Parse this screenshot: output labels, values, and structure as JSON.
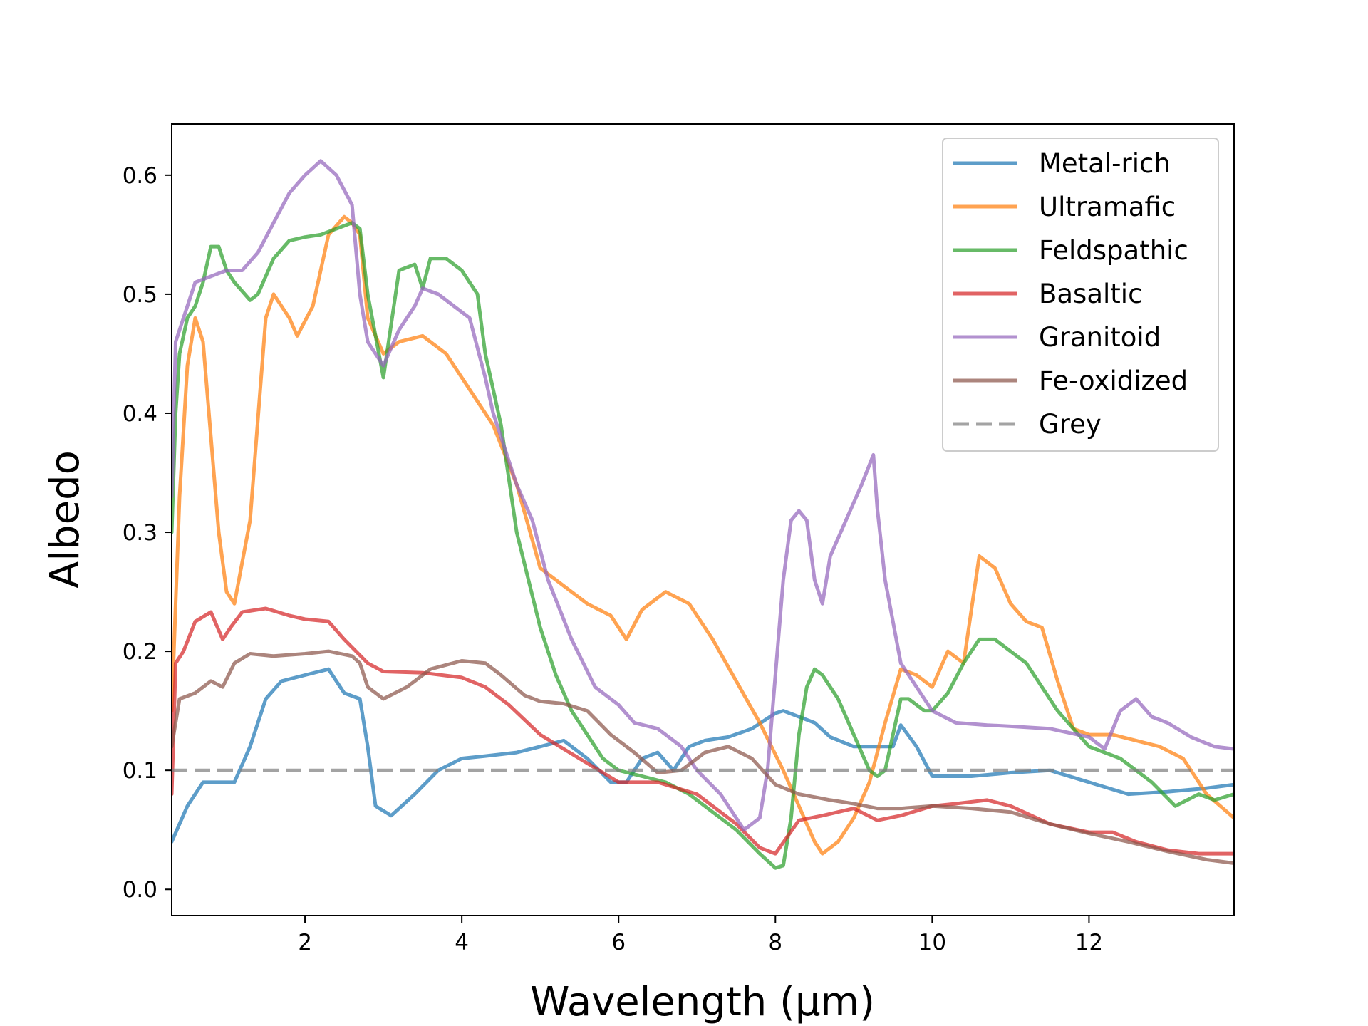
{
  "chart_data": {
    "type": "line",
    "title": "",
    "xlabel": "Wavelength (μm)",
    "ylabel": "Albedo",
    "xlim": [
      0.3,
      13.85
    ],
    "ylim": [
      -0.022,
      0.643
    ],
    "xticks": [
      2,
      4,
      6,
      8,
      10,
      12
    ],
    "yticks": [
      0.0,
      0.1,
      0.2,
      0.3,
      0.4,
      0.5,
      0.6
    ],
    "ytick_labels": [
      "0.0",
      "0.1",
      "0.2",
      "0.3",
      "0.4",
      "0.5",
      "0.6"
    ],
    "grid": false,
    "legend_position": "top-right",
    "series": [
      {
        "name": "Metal-rich",
        "color": "#1f77b4",
        "dashed": false,
        "x": [
          0.3,
          0.5,
          0.7,
          0.9,
          1.1,
          1.3,
          1.5,
          1.7,
          2.0,
          2.3,
          2.5,
          2.7,
          2.8,
          2.9,
          3.1,
          3.4,
          3.7,
          4.0,
          4.3,
          4.7,
          5.0,
          5.3,
          5.6,
          5.9,
          6.1,
          6.3,
          6.5,
          6.7,
          6.9,
          7.1,
          7.4,
          7.7,
          8.0,
          8.1,
          8.3,
          8.5,
          8.7,
          9.0,
          9.3,
          9.5,
          9.6,
          9.8,
          10.0,
          10.5,
          11.0,
          11.5,
          12.0,
          12.5,
          13.0,
          13.5,
          13.85
        ],
        "y": [
          0.04,
          0.07,
          0.09,
          0.09,
          0.09,
          0.12,
          0.16,
          0.175,
          0.18,
          0.185,
          0.165,
          0.16,
          0.12,
          0.07,
          0.062,
          0.08,
          0.1,
          0.11,
          0.112,
          0.115,
          0.12,
          0.125,
          0.11,
          0.09,
          0.09,
          0.11,
          0.115,
          0.1,
          0.12,
          0.125,
          0.128,
          0.135,
          0.148,
          0.15,
          0.145,
          0.14,
          0.128,
          0.12,
          0.12,
          0.12,
          0.138,
          0.12,
          0.095,
          0.095,
          0.098,
          0.1,
          0.09,
          0.08,
          0.082,
          0.085,
          0.088
        ]
      },
      {
        "name": "Ultramafic",
        "color": "#ff7f0e",
        "dashed": false,
        "x": [
          0.3,
          0.4,
          0.5,
          0.6,
          0.7,
          0.8,
          0.9,
          1.0,
          1.1,
          1.3,
          1.5,
          1.6,
          1.8,
          1.9,
          2.1,
          2.3,
          2.5,
          2.6,
          2.7,
          2.8,
          3.0,
          3.2,
          3.5,
          3.8,
          4.1,
          4.4,
          4.7,
          5.0,
          5.3,
          5.6,
          5.9,
          6.1,
          6.3,
          6.6,
          6.9,
          7.2,
          7.5,
          7.8,
          8.1,
          8.3,
          8.5,
          8.6,
          8.8,
          9.0,
          9.2,
          9.4,
          9.6,
          9.8,
          10.0,
          10.2,
          10.4,
          10.6,
          10.8,
          11.0,
          11.2,
          11.4,
          11.6,
          11.8,
          12.0,
          12.3,
          12.6,
          12.9,
          13.2,
          13.5,
          13.85
        ],
        "y": [
          0.15,
          0.33,
          0.44,
          0.48,
          0.46,
          0.38,
          0.3,
          0.25,
          0.24,
          0.31,
          0.48,
          0.5,
          0.48,
          0.465,
          0.49,
          0.55,
          0.565,
          0.56,
          0.55,
          0.48,
          0.45,
          0.46,
          0.465,
          0.45,
          0.42,
          0.39,
          0.34,
          0.27,
          0.255,
          0.24,
          0.23,
          0.21,
          0.235,
          0.25,
          0.24,
          0.21,
          0.175,
          0.14,
          0.1,
          0.07,
          0.04,
          0.03,
          0.04,
          0.06,
          0.09,
          0.14,
          0.185,
          0.18,
          0.17,
          0.2,
          0.19,
          0.28,
          0.27,
          0.24,
          0.225,
          0.22,
          0.175,
          0.135,
          0.13,
          0.13,
          0.125,
          0.12,
          0.11,
          0.08,
          0.06
        ]
      },
      {
        "name": "Feldspathic",
        "color": "#2ca02c",
        "dashed": false,
        "x": [
          0.3,
          0.35,
          0.4,
          0.5,
          0.6,
          0.7,
          0.8,
          0.9,
          1.0,
          1.1,
          1.3,
          1.4,
          1.6,
          1.8,
          2.0,
          2.2,
          2.4,
          2.6,
          2.7,
          2.8,
          3.0,
          3.2,
          3.4,
          3.5,
          3.6,
          3.8,
          4.0,
          4.2,
          4.3,
          4.4,
          4.5,
          4.7,
          5.0,
          5.2,
          5.4,
          5.6,
          5.8,
          6.0,
          6.3,
          6.6,
          6.9,
          7.2,
          7.5,
          7.8,
          8.0,
          8.1,
          8.2,
          8.3,
          8.4,
          8.5,
          8.6,
          8.8,
          9.0,
          9.2,
          9.3,
          9.4,
          9.5,
          9.6,
          9.7,
          9.9,
          10.0,
          10.2,
          10.4,
          10.6,
          10.8,
          11.0,
          11.2,
          11.4,
          11.6,
          12.0,
          12.4,
          12.8,
          13.1,
          13.4,
          13.6,
          13.85
        ],
        "y": [
          0.3,
          0.4,
          0.45,
          0.48,
          0.49,
          0.51,
          0.54,
          0.54,
          0.52,
          0.51,
          0.495,
          0.5,
          0.53,
          0.545,
          0.548,
          0.55,
          0.555,
          0.56,
          0.555,
          0.5,
          0.43,
          0.52,
          0.525,
          0.505,
          0.53,
          0.53,
          0.52,
          0.5,
          0.45,
          0.42,
          0.39,
          0.3,
          0.22,
          0.18,
          0.15,
          0.13,
          0.11,
          0.1,
          0.095,
          0.09,
          0.08,
          0.065,
          0.05,
          0.03,
          0.018,
          0.02,
          0.06,
          0.13,
          0.17,
          0.185,
          0.18,
          0.16,
          0.13,
          0.1,
          0.095,
          0.1,
          0.13,
          0.16,
          0.16,
          0.15,
          0.15,
          0.165,
          0.19,
          0.21,
          0.21,
          0.2,
          0.19,
          0.17,
          0.15,
          0.12,
          0.11,
          0.09,
          0.07,
          0.08,
          0.075,
          0.08
        ]
      },
      {
        "name": "Basaltic",
        "color": "#d62728",
        "dashed": false,
        "x": [
          0.3,
          0.35,
          0.45,
          0.6,
          0.8,
          0.95,
          1.05,
          1.2,
          1.5,
          1.8,
          2.0,
          2.3,
          2.5,
          2.8,
          3.0,
          3.5,
          4.0,
          4.3,
          4.6,
          5.0,
          5.5,
          6.0,
          6.5,
          7.0,
          7.5,
          7.8,
          8.0,
          8.3,
          8.6,
          9.0,
          9.3,
          9.6,
          10.0,
          10.3,
          10.7,
          11.0,
          11.5,
          12.0,
          12.3,
          12.6,
          13.0,
          13.4,
          13.85
        ],
        "y": [
          0.08,
          0.19,
          0.2,
          0.225,
          0.233,
          0.21,
          0.22,
          0.233,
          0.236,
          0.23,
          0.227,
          0.225,
          0.21,
          0.19,
          0.183,
          0.182,
          0.178,
          0.17,
          0.155,
          0.13,
          0.11,
          0.09,
          0.09,
          0.08,
          0.055,
          0.035,
          0.03,
          0.058,
          0.062,
          0.068,
          0.058,
          0.062,
          0.07,
          0.072,
          0.075,
          0.07,
          0.055,
          0.048,
          0.048,
          0.04,
          0.033,
          0.03,
          0.03
        ]
      },
      {
        "name": "Granitoid",
        "color": "#9467bd",
        "dashed": false,
        "x": [
          0.3,
          0.35,
          0.45,
          0.6,
          0.8,
          1.0,
          1.2,
          1.4,
          1.6,
          1.8,
          2.0,
          2.2,
          2.4,
          2.6,
          2.7,
          2.8,
          3.0,
          3.2,
          3.4,
          3.5,
          3.7,
          3.9,
          4.1,
          4.3,
          4.4,
          4.5,
          4.7,
          4.9,
          5.1,
          5.4,
          5.7,
          6.0,
          6.2,
          6.5,
          6.8,
          7.0,
          7.3,
          7.6,
          7.8,
          7.9,
          8.0,
          8.1,
          8.2,
          8.3,
          8.4,
          8.5,
          8.6,
          8.7,
          8.9,
          9.1,
          9.25,
          9.3,
          9.4,
          9.6,
          9.8,
          10.0,
          10.3,
          10.7,
          11.0,
          11.5,
          12.0,
          12.2,
          12.4,
          12.6,
          12.8,
          13.0,
          13.3,
          13.6,
          13.85
        ],
        "y": [
          0.33,
          0.46,
          0.48,
          0.51,
          0.515,
          0.52,
          0.52,
          0.535,
          0.56,
          0.585,
          0.6,
          0.612,
          0.6,
          0.575,
          0.5,
          0.46,
          0.44,
          0.47,
          0.49,
          0.505,
          0.5,
          0.49,
          0.48,
          0.43,
          0.4,
          0.38,
          0.34,
          0.31,
          0.26,
          0.21,
          0.17,
          0.155,
          0.14,
          0.135,
          0.12,
          0.1,
          0.08,
          0.05,
          0.06,
          0.1,
          0.18,
          0.26,
          0.31,
          0.318,
          0.31,
          0.26,
          0.24,
          0.28,
          0.31,
          0.34,
          0.365,
          0.32,
          0.26,
          0.19,
          0.17,
          0.15,
          0.14,
          0.138,
          0.137,
          0.135,
          0.128,
          0.118,
          0.15,
          0.16,
          0.145,
          0.14,
          0.128,
          0.12,
          0.118
        ]
      },
      {
        "name": "Fe-oxidized",
        "color": "#8c564b",
        "dashed": false,
        "x": [
          0.3,
          0.4,
          0.6,
          0.8,
          0.95,
          1.1,
          1.3,
          1.6,
          2.0,
          2.3,
          2.6,
          2.7,
          2.8,
          3.0,
          3.3,
          3.6,
          4.0,
          4.3,
          4.5,
          4.8,
          5.0,
          5.3,
          5.6,
          5.9,
          6.2,
          6.5,
          6.8,
          7.1,
          7.4,
          7.7,
          8.0,
          8.3,
          8.7,
          9.0,
          9.3,
          9.6,
          10.0,
          10.5,
          11.0,
          11.5,
          12.0,
          12.5,
          13.0,
          13.5,
          13.85
        ],
        "y": [
          0.12,
          0.16,
          0.165,
          0.175,
          0.17,
          0.19,
          0.198,
          0.196,
          0.198,
          0.2,
          0.196,
          0.19,
          0.17,
          0.16,
          0.17,
          0.185,
          0.192,
          0.19,
          0.18,
          0.163,
          0.158,
          0.156,
          0.15,
          0.13,
          0.115,
          0.098,
          0.1,
          0.115,
          0.12,
          0.11,
          0.088,
          0.08,
          0.075,
          0.072,
          0.068,
          0.068,
          0.07,
          0.068,
          0.065,
          0.055,
          0.047,
          0.04,
          0.032,
          0.025,
          0.022
        ]
      },
      {
        "name": "Grey",
        "color": "#7f7f7f",
        "dashed": true,
        "x": [
          0.3,
          13.85
        ],
        "y": [
          0.1,
          0.1
        ]
      }
    ]
  }
}
